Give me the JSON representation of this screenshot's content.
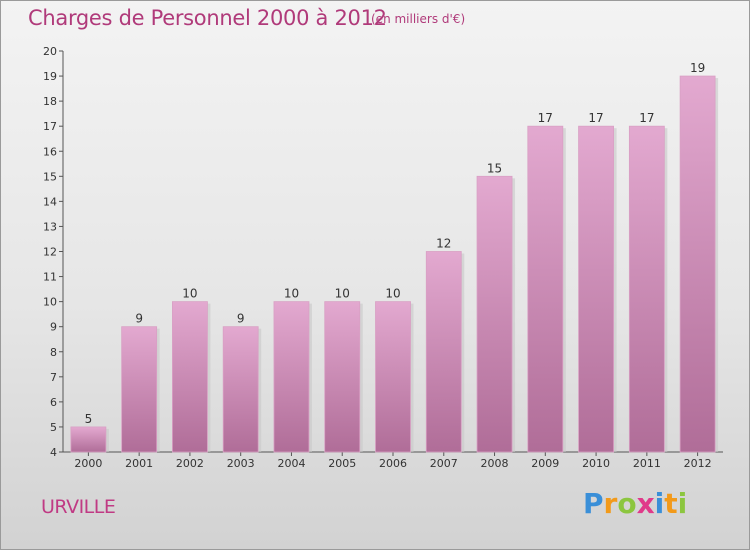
{
  "title": "Charges de Personnel 2000 à 2012",
  "subtitle": "(en milliers d'€)",
  "town": "URVILLE",
  "logo": "Proxiti",
  "colors": {
    "bar_top": "#e3a9d0",
    "bar_bottom": "#b06d98",
    "title": "#b03a7a",
    "town": "#c03a84"
  },
  "chart_data": {
    "type": "bar",
    "categories": [
      "2000",
      "2001",
      "2002",
      "2003",
      "2004",
      "2005",
      "2006",
      "2007",
      "2008",
      "2009",
      "2010",
      "2011",
      "2012"
    ],
    "values": [
      5,
      9,
      10,
      9,
      10,
      10,
      10,
      12,
      15,
      17,
      17,
      17,
      19
    ],
    "ylim": [
      4,
      20
    ],
    "yticks": [
      4,
      5,
      6,
      7,
      8,
      9,
      10,
      11,
      12,
      13,
      14,
      15,
      16,
      17,
      18,
      19,
      20
    ],
    "xlabel": "",
    "ylabel": "",
    "grid": false
  }
}
